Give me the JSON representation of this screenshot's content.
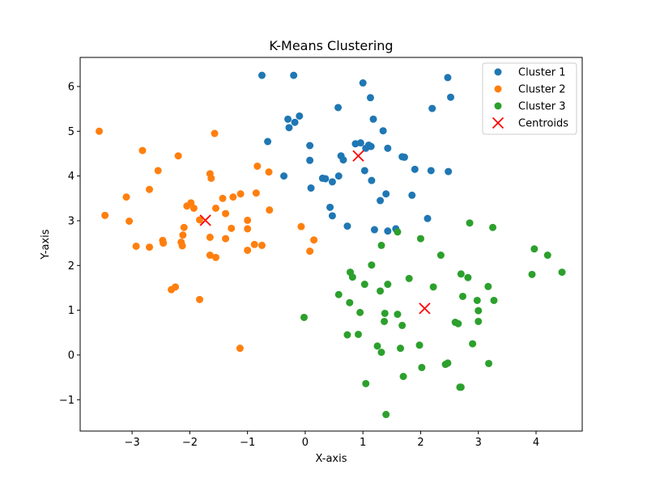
{
  "chart_data": {
    "type": "scatter",
    "title": "K-Means Clustering",
    "xlabel": "X-axis",
    "ylabel": "Y-axis",
    "xlim": [
      -3.9,
      4.8
    ],
    "ylim": [
      -1.7,
      6.65
    ],
    "xticks": [
      -3,
      -2,
      -1,
      0,
      1,
      2,
      3,
      4
    ],
    "yticks": [
      -1,
      0,
      1,
      2,
      3,
      4,
      5,
      6
    ],
    "grid": false,
    "legend_position": "top-right",
    "series": [
      {
        "name": "Cluster 1",
        "color": "#1f77b4",
        "marker": "circle",
        "points": [
          [
            -0.75,
            6.25
          ],
          [
            -0.2,
            6.25
          ],
          [
            1.0,
            6.08
          ],
          [
            2.47,
            6.2
          ],
          [
            2.52,
            5.76
          ],
          [
            1.13,
            5.75
          ],
          [
            0.57,
            5.53
          ],
          [
            2.2,
            5.51
          ],
          [
            -0.1,
            5.34
          ],
          [
            -0.3,
            5.27
          ],
          [
            1.18,
            5.27
          ],
          [
            -0.18,
            5.2
          ],
          [
            -0.28,
            5.08
          ],
          [
            1.35,
            5.01
          ],
          [
            -0.65,
            4.77
          ],
          [
            0.08,
            4.68
          ],
          [
            0.87,
            4.72
          ],
          [
            0.96,
            4.74
          ],
          [
            1.05,
            4.62
          ],
          [
            1.1,
            4.69
          ],
          [
            1.14,
            4.66
          ],
          [
            1.43,
            4.62
          ],
          [
            0.62,
            4.45
          ],
          [
            0.66,
            4.36
          ],
          [
            1.68,
            4.43
          ],
          [
            1.72,
            4.42
          ],
          [
            0.08,
            4.35
          ],
          [
            1.9,
            4.15
          ],
          [
            2.18,
            4.12
          ],
          [
            2.48,
            4.1
          ],
          [
            1.03,
            4.12
          ],
          [
            -0.37,
            4.0
          ],
          [
            0.58,
            4.0
          ],
          [
            0.3,
            3.95
          ],
          [
            0.35,
            3.94
          ],
          [
            0.47,
            3.87
          ],
          [
            1.15,
            3.9
          ],
          [
            0.1,
            3.73
          ],
          [
            1.4,
            3.6
          ],
          [
            1.85,
            3.57
          ],
          [
            1.3,
            3.45
          ],
          [
            0.43,
            3.3
          ],
          [
            0.47,
            3.11
          ],
          [
            2.12,
            3.05
          ],
          [
            0.73,
            2.88
          ],
          [
            1.2,
            2.8
          ],
          [
            1.43,
            2.77
          ],
          [
            1.57,
            2.82
          ]
        ]
      },
      {
        "name": "Cluster 2",
        "color": "#ff7f0e",
        "marker": "circle",
        "points": [
          [
            -3.57,
            5.0
          ],
          [
            -1.57,
            4.95
          ],
          [
            -2.82,
            4.57
          ],
          [
            -2.2,
            4.45
          ],
          [
            -2.55,
            4.12
          ],
          [
            -0.83,
            4.22
          ],
          [
            -1.65,
            4.05
          ],
          [
            -1.63,
            3.95
          ],
          [
            -0.63,
            4.09
          ],
          [
            -2.7,
            3.7
          ],
          [
            -3.1,
            3.53
          ],
          [
            -1.12,
            3.6
          ],
          [
            -1.25,
            3.53
          ],
          [
            -1.43,
            3.5
          ],
          [
            -0.85,
            3.62
          ],
          [
            -1.98,
            3.4
          ],
          [
            -2.05,
            3.33
          ],
          [
            -1.93,
            3.28
          ],
          [
            -1.55,
            3.28
          ],
          [
            -0.62,
            3.24
          ],
          [
            -1.38,
            3.16
          ],
          [
            -3.47,
            3.12
          ],
          [
            -3.05,
            2.99
          ],
          [
            -1.83,
            3.02
          ],
          [
            -1.0,
            3.01
          ],
          [
            -0.07,
            2.87
          ],
          [
            -2.1,
            2.85
          ],
          [
            -1.28,
            2.83
          ],
          [
            -1.0,
            2.82
          ],
          [
            -2.12,
            2.68
          ],
          [
            -1.65,
            2.63
          ],
          [
            -1.38,
            2.6
          ],
          [
            0.15,
            2.57
          ],
          [
            -2.47,
            2.56
          ],
          [
            -2.46,
            2.5
          ],
          [
            -2.15,
            2.52
          ],
          [
            -2.13,
            2.44
          ],
          [
            -2.93,
            2.43
          ],
          [
            -2.7,
            2.41
          ],
          [
            -0.88,
            2.47
          ],
          [
            -0.75,
            2.45
          ],
          [
            -1.0,
            2.34
          ],
          [
            0.08,
            2.32
          ],
          [
            -1.65,
            2.23
          ],
          [
            -1.55,
            2.18
          ],
          [
            -2.25,
            1.52
          ],
          [
            -2.32,
            1.46
          ],
          [
            -1.83,
            1.24
          ],
          [
            -1.13,
            0.15
          ]
        ]
      },
      {
        "name": "Cluster 3",
        "color": "#2ca02c",
        "marker": "circle",
        "points": [
          [
            2.85,
            2.95
          ],
          [
            3.25,
            2.85
          ],
          [
            1.6,
            2.75
          ],
          [
            2.0,
            2.6
          ],
          [
            1.32,
            2.45
          ],
          [
            3.97,
            2.37
          ],
          [
            2.35,
            2.23
          ],
          [
            4.2,
            2.23
          ],
          [
            1.15,
            2.01
          ],
          [
            4.45,
            1.85
          ],
          [
            0.78,
            1.85
          ],
          [
            2.7,
            1.81
          ],
          [
            3.93,
            1.8
          ],
          [
            0.82,
            1.74
          ],
          [
            2.82,
            1.73
          ],
          [
            1.8,
            1.71
          ],
          [
            1.03,
            1.58
          ],
          [
            1.43,
            1.58
          ],
          [
            2.22,
            1.52
          ],
          [
            3.17,
            1.53
          ],
          [
            1.3,
            1.43
          ],
          [
            0.58,
            1.35
          ],
          [
            2.73,
            1.31
          ],
          [
            2.98,
            1.22
          ],
          [
            3.27,
            1.22
          ],
          [
            0.77,
            1.17
          ],
          [
            3.0,
            0.99
          ],
          [
            0.95,
            0.95
          ],
          [
            1.38,
            0.93
          ],
          [
            1.6,
            0.91
          ],
          [
            -0.02,
            0.84
          ],
          [
            1.37,
            0.75
          ],
          [
            2.6,
            0.73
          ],
          [
            2.65,
            0.7
          ],
          [
            3.0,
            0.75
          ],
          [
            1.68,
            0.66
          ],
          [
            0.73,
            0.45
          ],
          [
            0.92,
            0.46
          ],
          [
            2.9,
            0.25
          ],
          [
            1.98,
            0.22
          ],
          [
            1.25,
            0.2
          ],
          [
            1.65,
            0.15
          ],
          [
            1.32,
            0.06
          ],
          [
            2.47,
            -0.18
          ],
          [
            2.43,
            -0.21
          ],
          [
            3.18,
            -0.19
          ],
          [
            2.02,
            -0.28
          ],
          [
            1.7,
            -0.48
          ],
          [
            1.05,
            -0.64
          ],
          [
            2.7,
            -0.72
          ],
          [
            2.68,
            -0.72
          ],
          [
            1.4,
            -1.33
          ]
        ]
      },
      {
        "name": "Centroids",
        "color": "#ff0000",
        "marker": "x",
        "points": [
          [
            0.92,
            4.45
          ],
          [
            -1.73,
            3.01
          ],
          [
            2.07,
            1.04
          ]
        ]
      }
    ]
  }
}
